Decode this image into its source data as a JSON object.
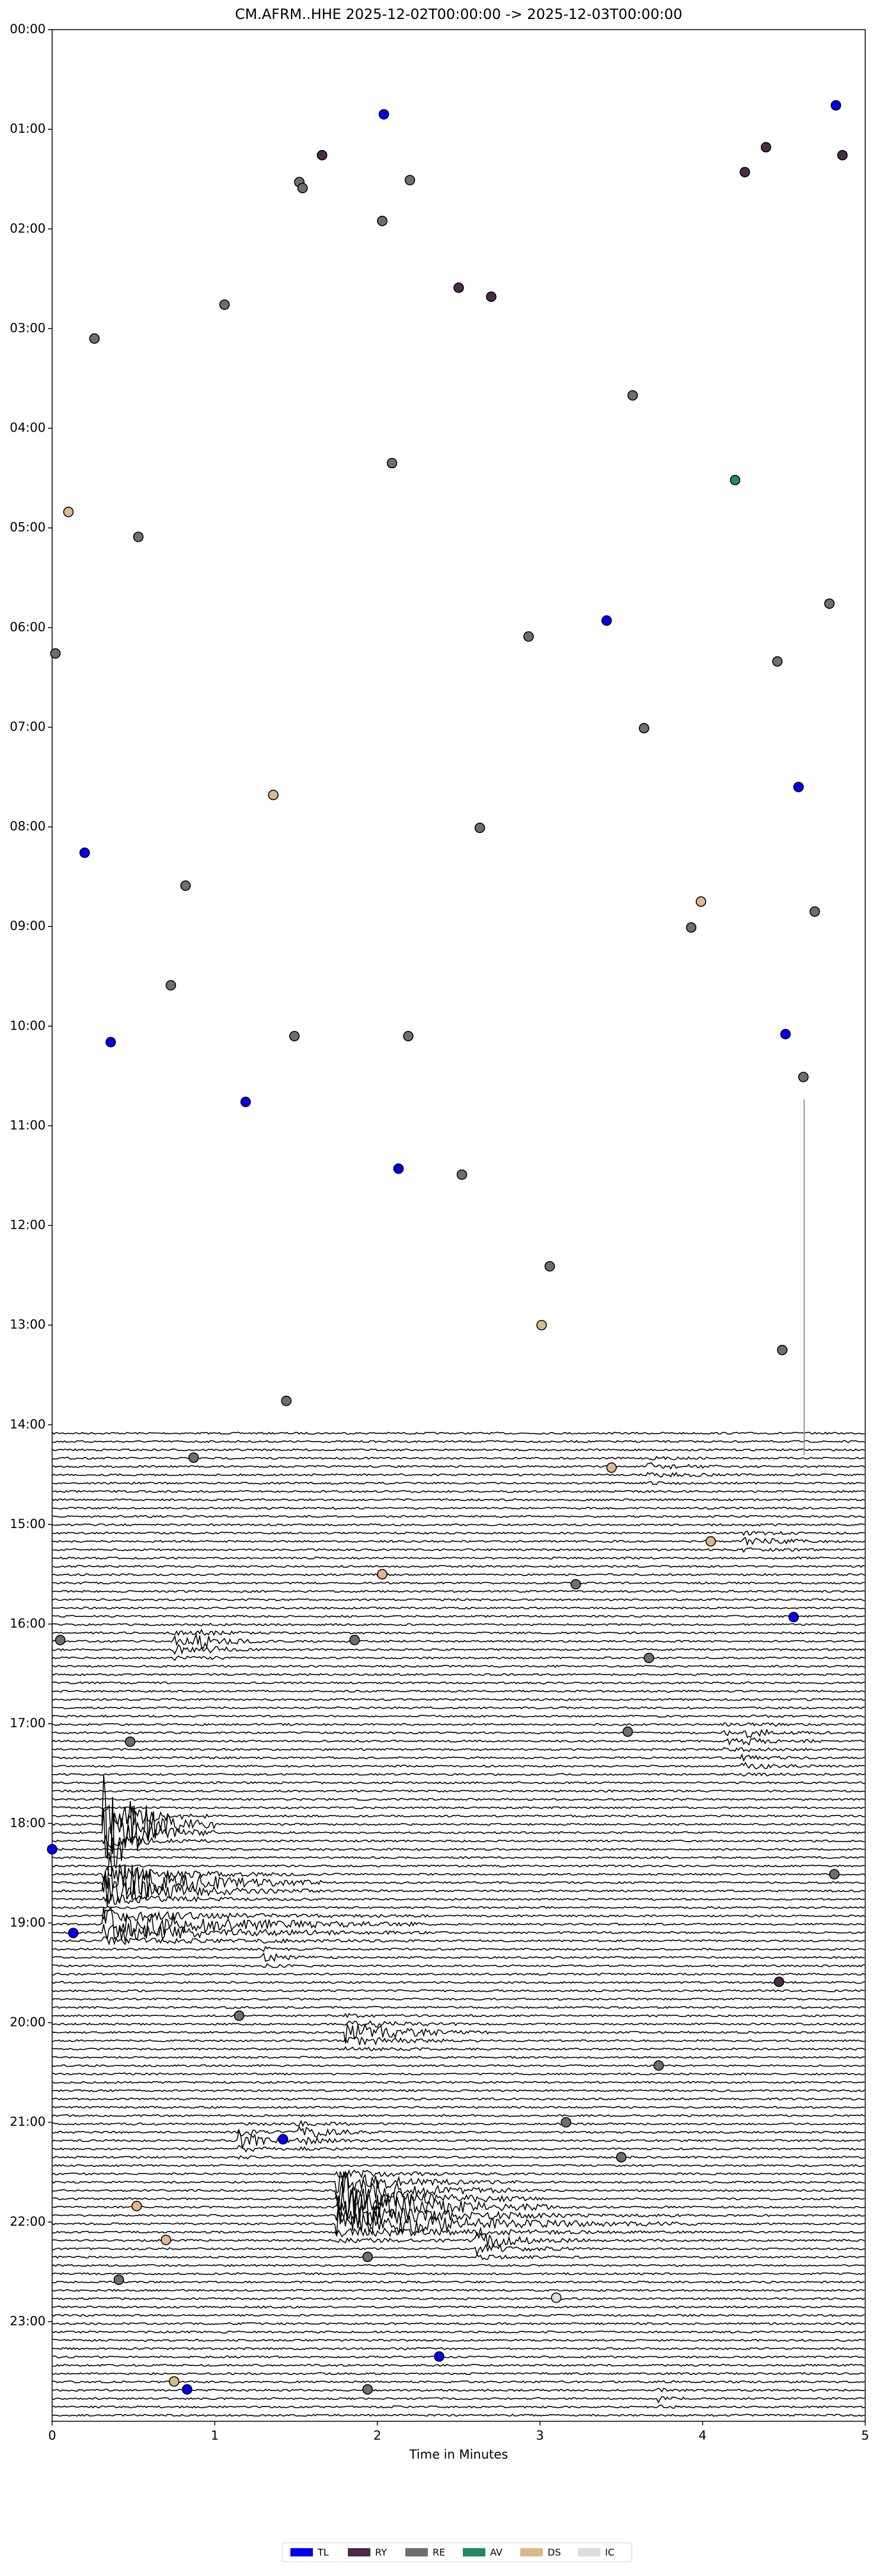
{
  "chart_data": {
    "type": "scatter",
    "title": "CM.AFRM..HHE  2025-12-02T00:00:00 -> 2025-12-03T00:00:00",
    "x_label": "Time in Minutes",
    "xlim": [
      0,
      5
    ],
    "xticks": [
      0,
      1,
      2,
      3,
      4,
      5
    ],
    "ylim": [
      0,
      24
    ],
    "y_inverted": true,
    "yticks": [
      {
        "value": 0,
        "label": "00:00"
      },
      {
        "value": 1,
        "label": "01:00"
      },
      {
        "value": 2,
        "label": "02:00"
      },
      {
        "value": 3,
        "label": "03:00"
      },
      {
        "value": 4,
        "label": "04:00"
      },
      {
        "value": 5,
        "label": "05:00"
      },
      {
        "value": 6,
        "label": "06:00"
      },
      {
        "value": 7,
        "label": "07:00"
      },
      {
        "value": 8,
        "label": "08:00"
      },
      {
        "value": 9,
        "label": "09:00"
      },
      {
        "value": 10,
        "label": "10:00"
      },
      {
        "value": 11,
        "label": "11:00"
      },
      {
        "value": 12,
        "label": "12:00"
      },
      {
        "value": 13,
        "label": "13:00"
      },
      {
        "value": 14,
        "label": "14:00"
      },
      {
        "value": 15,
        "label": "15:00"
      },
      {
        "value": 16,
        "label": "16:00"
      },
      {
        "value": 17,
        "label": "17:00"
      },
      {
        "value": 18,
        "label": "18:00"
      },
      {
        "value": 19,
        "label": "19:00"
      },
      {
        "value": 20,
        "label": "20:00"
      },
      {
        "value": 21,
        "label": "21:00"
      },
      {
        "value": 22,
        "label": "22:00"
      },
      {
        "value": 23,
        "label": "23:00"
      }
    ],
    "legend": "bottom",
    "series": [
      {
        "name": "TL",
        "color": "#0000ee",
        "x": [
          2.04,
          4.82,
          3.41,
          4.59,
          0.2,
          0.36,
          4.51,
          1.19,
          2.13,
          4.56,
          0.0,
          0.13,
          1.42,
          2.38,
          0.83
        ],
        "values": [
          0.85,
          0.76,
          5.93,
          7.6,
          8.26,
          10.16,
          10.08,
          10.76,
          11.43,
          15.93,
          18.26,
          19.1,
          21.17,
          23.35,
          23.68
        ]
      },
      {
        "name": "RY",
        "color": "#4a2c47",
        "x": [
          1.66,
          4.39,
          4.26,
          4.86,
          2.5,
          2.7,
          4.47
        ],
        "values": [
          1.26,
          1.18,
          1.43,
          1.26,
          2.59,
          2.68,
          19.59
        ]
      },
      {
        "name": "RE",
        "color": "#6e6e6e",
        "x": [
          1.52,
          1.54,
          2.2,
          2.03,
          1.06,
          0.26,
          3.57,
          2.09,
          0.53,
          4.78,
          0.02,
          2.93,
          4.46,
          3.64,
          2.63,
          0.82,
          4.69,
          3.93,
          0.73,
          1.49,
          2.19,
          4.62,
          2.52,
          3.06,
          4.49,
          1.44,
          0.87,
          3.22,
          0.05,
          1.86,
          3.67,
          0.48,
          3.54,
          4.81,
          1.15,
          3.73,
          3.16,
          3.5,
          1.94,
          0.41,
          1.94
        ],
        "values": [
          1.53,
          1.59,
          1.51,
          1.92,
          2.76,
          3.1,
          3.67,
          4.35,
          5.09,
          5.76,
          6.26,
          6.09,
          6.34,
          7.01,
          8.01,
          8.59,
          8.85,
          9.01,
          9.59,
          10.1,
          10.1,
          10.51,
          11.49,
          12.41,
          13.25,
          13.76,
          14.33,
          15.6,
          16.16,
          16.16,
          16.34,
          17.18,
          17.08,
          18.51,
          19.93,
          20.43,
          21.0,
          21.35,
          22.35,
          22.58,
          23.68
        ]
      },
      {
        "name": "AV",
        "color": "#1f8a68",
        "x": [
          4.2
        ],
        "values": [
          4.52
        ]
      },
      {
        "name": "DS",
        "color": "#dcb88c",
        "x": [
          0.1,
          1.36,
          3.99,
          3.01,
          3.44,
          4.05,
          2.03,
          0.52,
          0.7,
          0.75
        ],
        "values": [
          4.84,
          7.68,
          8.75,
          13.0,
          14.43,
          15.17,
          15.5,
          21.84,
          22.18,
          23.6
        ]
      },
      {
        "name": "IC",
        "color": "#dddddd",
        "x": [
          3.1
        ],
        "values": [
          22.76
        ]
      }
    ]
  }
}
